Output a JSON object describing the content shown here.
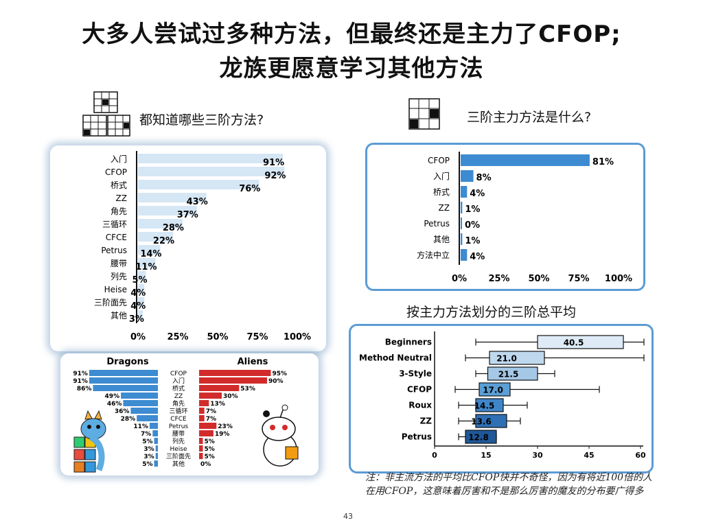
{
  "title_line1": "大多人尝试过多种方法，但最终还是主力了CFOP;",
  "title_line2": "龙族更愿意学习其他方法",
  "page_number": "43",
  "note": "注：非主流方法的平均比CFOP快并不奇怪，因为有将近100倍的人在用CFOP，这意味着厉害和不是那么厉害的魔友的分布要广得多",
  "colors": {
    "light_bar": "#d5e6f4",
    "blue": "#3d8bd1",
    "red": "#d22b2b",
    "axis": "#111111"
  },
  "icons": [
    "rubiks-cube-icon",
    "dragon-mascot-icon",
    "reddit-alien-mascot-icon"
  ],
  "chart_data": [
    {
      "type": "bar",
      "orientation": "horizontal",
      "title": "都知道哪些三阶方法?",
      "categories": [
        "入门",
        "CFOP",
        "桥式",
        "ZZ",
        "角先",
        "三循环",
        "CFCE",
        "Petrus",
        "腰带",
        "列先",
        "Heise",
        "三阶面先",
        "其他"
      ],
      "values": [
        91,
        92,
        76,
        43,
        37,
        28,
        22,
        14,
        11,
        5,
        4,
        4,
        3
      ],
      "value_labels": [
        "91%",
        "92%",
        "76%",
        "43%",
        "37%",
        "28%",
        "22%",
        "14%",
        "11%",
        "5%",
        "4%",
        "4%",
        "3%"
      ],
      "ticks": [
        "0%",
        "25%",
        "50%",
        "75%",
        "100%"
      ],
      "xlim": [
        0,
        100
      ]
    },
    {
      "type": "bar",
      "orientation": "horizontal",
      "title": "三阶主力方法是什么?",
      "categories": [
        "CFOP",
        "入门",
        "桥式",
        "ZZ",
        "Petrus",
        "其他",
        "方法中立"
      ],
      "values": [
        81,
        8,
        4,
        1,
        0,
        1,
        4
      ],
      "value_labels": [
        "81%",
        "8%",
        "4%",
        "1%",
        "0%",
        "1%",
        "4%"
      ],
      "ticks": [
        "0%",
        "25%",
        "50%",
        "75%",
        "100%"
      ],
      "xlim": [
        0,
        100
      ]
    },
    {
      "type": "box",
      "orientation": "horizontal",
      "title": "按主力方法划分的三阶总平均",
      "categories": [
        "Beginners",
        "Method Neutral",
        "3-Style",
        "CFOP",
        "Roux",
        "ZZ",
        "Petrus"
      ],
      "whisker_low": [
        12,
        9,
        12,
        6,
        7,
        7,
        7
      ],
      "q1": [
        30,
        16,
        15.5,
        13,
        12,
        12,
        9
      ],
      "median": [
        40.5,
        21.0,
        21.5,
        17.0,
        14.5,
        13.6,
        12.8
      ],
      "q3": [
        55,
        32,
        30,
        22,
        20,
        21,
        18
      ],
      "whisker_high": [
        61,
        61,
        35,
        48,
        27,
        25,
        18
      ],
      "median_labels": [
        "40.5",
        "21.0",
        "21.5",
        "17.0",
        "14.5",
        "13.6",
        "12.8"
      ],
      "box_colors": [
        "#deebf7",
        "#c0d8ee",
        "#a4c8e6",
        "#5c9fd6",
        "#3f86c9",
        "#2f6fb3",
        "#1f5899"
      ],
      "ticks": [
        "0",
        "15",
        "30",
        "45",
        "60"
      ],
      "xlim": [
        0,
        60
      ]
    },
    {
      "type": "bar",
      "orientation": "horizontal",
      "categories": [
        "CFOP",
        "入门",
        "桥式",
        "ZZ",
        "角先",
        "三循环",
        "CFCE",
        "Petrus",
        "腰带",
        "列先",
        "Heise",
        "三阶面先",
        "其他"
      ],
      "series": [
        {
          "name": "Dragons",
          "values": [
            91,
            91,
            86,
            49,
            46,
            36,
            28,
            11,
            7,
            5,
            3,
            3,
            5
          ],
          "labels": [
            "91%",
            "91%",
            "86%",
            "49%",
            "46%",
            "36%",
            "28%",
            "11%",
            "7%",
            "5%",
            "3%",
            "3%",
            "5%"
          ]
        },
        {
          "name": "Aliens",
          "values": [
            95,
            90,
            53,
            30,
            13,
            7,
            7,
            23,
            19,
            5,
            5,
            5,
            0
          ],
          "labels": [
            "95%",
            "90%",
            "53%",
            "30%",
            "13%",
            "7%",
            "7%",
            "23%",
            "19%",
            "5%",
            "5%",
            "5%",
            "0%"
          ]
        }
      ]
    }
  ]
}
